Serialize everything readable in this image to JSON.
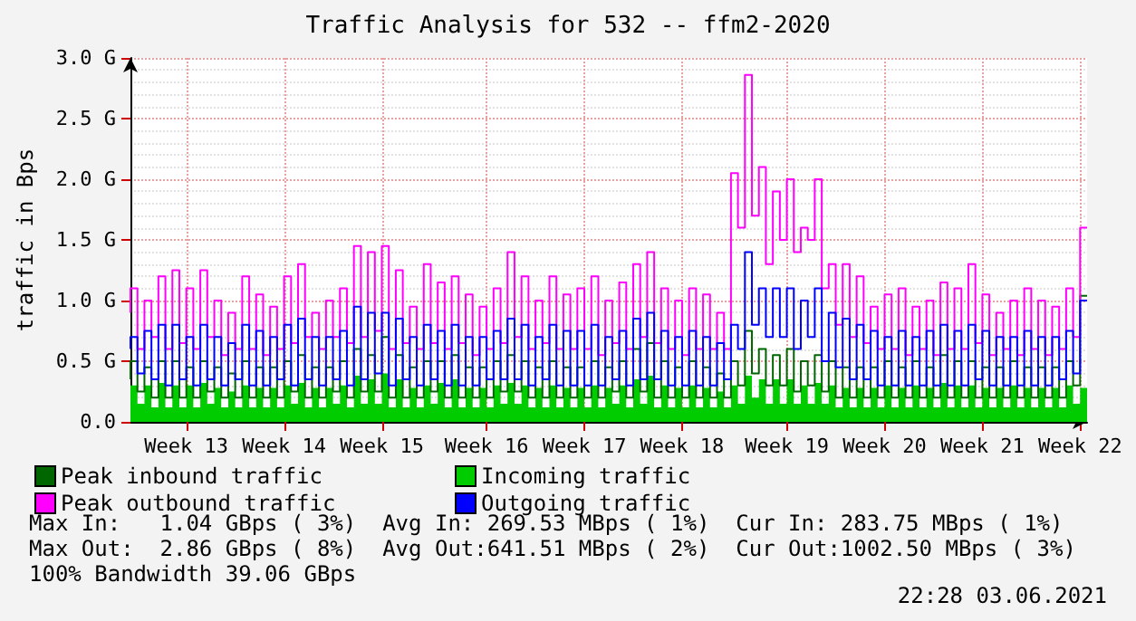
{
  "chart_data": {
    "type": "step",
    "title": "Traffic Analysis for 532 -- ffm2-2020",
    "ylabel": "traffic in Bps",
    "categories": [
      null,
      null,
      null,
      null,
      null,
      null,
      null,
      null,
      "Week 13",
      null,
      null,
      null,
      null,
      null,
      null,
      null,
      null,
      null,
      null,
      null,
      null,
      null,
      "Week 14",
      null,
      null,
      null,
      null,
      null,
      null,
      null,
      null,
      null,
      null,
      null,
      null,
      null,
      "Week 15",
      null,
      null,
      null,
      null,
      null,
      null,
      null,
      null,
      null,
      null,
      null,
      null,
      null,
      null,
      "Week 16",
      null,
      null,
      null,
      null,
      null,
      null,
      null,
      null,
      null,
      null,
      null,
      null,
      null,
      "Week 17",
      null,
      null,
      null,
      null,
      null,
      null,
      null,
      null,
      null,
      null,
      null,
      null,
      null,
      "Week 18",
      null,
      null,
      null,
      null,
      null,
      null,
      null,
      null,
      null,
      null,
      null,
      null,
      null,
      null,
      "Week 19",
      null,
      null,
      null,
      null,
      null,
      null,
      null,
      null,
      null,
      null,
      null,
      null,
      null,
      "Week 20",
      null,
      null,
      null,
      null,
      null,
      null,
      null,
      null,
      null,
      null,
      null,
      null,
      null,
      "Week 21",
      null,
      null,
      null,
      null,
      null,
      null,
      null,
      null,
      null,
      null,
      null,
      null,
      null,
      "Week 22",
      null
    ],
    "ylim": [
      0,
      3
    ],
    "yticks": [
      {
        "value": 0,
        "label": "0.0"
      },
      {
        "value": 0.5,
        "label": "0.5 G"
      },
      {
        "value": 1,
        "label": "1.0 G"
      },
      {
        "value": 1.5,
        "label": "1.5 G"
      },
      {
        "value": 2,
        "label": "2.0 G"
      },
      {
        "value": 2.5,
        "label": "2.5 G"
      },
      {
        "value": 3,
        "label": "3.0 G"
      }
    ],
    "grid": true,
    "legend": "bottom left",
    "series": [
      {
        "name": "Peak inbound traffic",
        "color": "#006600",
        "values": [
          0.35,
          0.5,
          0.25,
          0.45,
          0.2,
          0.5,
          0.2,
          0.5,
          0.2,
          0.45,
          0.2,
          0.5,
          0.25,
          0.45,
          0.2,
          0.4,
          0.2,
          0.5,
          0.2,
          0.45,
          0.2,
          0.45,
          0.2,
          0.5,
          0.25,
          0.55,
          0.2,
          0.45,
          0.2,
          0.45,
          0.25,
          0.5,
          0.2,
          0.6,
          0.25,
          0.55,
          0.25,
          0.7,
          0.2,
          0.55,
          0.2,
          0.45,
          0.2,
          0.5,
          0.25,
          0.5,
          0.2,
          0.55,
          0.2,
          0.45,
          0.2,
          0.45,
          0.2,
          0.5,
          0.25,
          0.55,
          0.25,
          0.5,
          0.2,
          0.45,
          0.2,
          0.5,
          0.2,
          0.45,
          0.2,
          0.45,
          0.2,
          0.5,
          0.2,
          0.45,
          0.25,
          0.5,
          0.2,
          0.6,
          0.25,
          0.65,
          0.2,
          0.5,
          0.2,
          0.45,
          0.2,
          0.5,
          0.2,
          0.45,
          0.2,
          0.4,
          0.2,
          0.5,
          0.3,
          0.75,
          0.4,
          0.6,
          0.3,
          0.55,
          0.3,
          0.6,
          0.25,
          0.5,
          0.3,
          0.55,
          0.25,
          0.5,
          0.2,
          0.45,
          0.2,
          0.45,
          0.2,
          0.45,
          0.2,
          0.5,
          0.2,
          0.45,
          0.2,
          0.5,
          0.2,
          0.45,
          0.2,
          0.55,
          0.2,
          0.5,
          0.2,
          0.5,
          0.2,
          0.45,
          0.2,
          0.45,
          0.2,
          0.5,
          0.2,
          0.45,
          0.2,
          0.45,
          0.2,
          0.45,
          0.2,
          0.5,
          0.3,
          1.04
        ]
      },
      {
        "name": "Incoming traffic",
        "type": "area",
        "color": "#00cc00",
        "values": [
          0.25,
          0.3,
          0.15,
          0.3,
          0.12,
          0.32,
          0.12,
          0.3,
          0.12,
          0.3,
          0.12,
          0.32,
          0.15,
          0.28,
          0.12,
          0.25,
          0.12,
          0.3,
          0.12,
          0.28,
          0.12,
          0.28,
          0.12,
          0.3,
          0.15,
          0.32,
          0.12,
          0.28,
          0.12,
          0.28,
          0.15,
          0.3,
          0.12,
          0.38,
          0.15,
          0.35,
          0.15,
          0.4,
          0.12,
          0.35,
          0.12,
          0.28,
          0.12,
          0.3,
          0.15,
          0.32,
          0.12,
          0.35,
          0.12,
          0.28,
          0.12,
          0.28,
          0.12,
          0.3,
          0.15,
          0.32,
          0.15,
          0.3,
          0.12,
          0.28,
          0.12,
          0.3,
          0.12,
          0.28,
          0.12,
          0.28,
          0.12,
          0.3,
          0.12,
          0.28,
          0.15,
          0.3,
          0.12,
          0.35,
          0.15,
          0.38,
          0.12,
          0.3,
          0.12,
          0.28,
          0.12,
          0.3,
          0.12,
          0.28,
          0.12,
          0.25,
          0.12,
          0.3,
          0.15,
          0.38,
          0.2,
          0.35,
          0.15,
          0.35,
          0.15,
          0.35,
          0.15,
          0.3,
          0.15,
          0.32,
          0.15,
          0.3,
          0.12,
          0.28,
          0.12,
          0.28,
          0.12,
          0.28,
          0.12,
          0.3,
          0.12,
          0.28,
          0.12,
          0.3,
          0.12,
          0.28,
          0.12,
          0.32,
          0.12,
          0.3,
          0.12,
          0.3,
          0.12,
          0.28,
          0.12,
          0.28,
          0.12,
          0.3,
          0.12,
          0.28,
          0.12,
          0.28,
          0.12,
          0.28,
          0.12,
          0.3,
          0.15,
          0.28
        ]
      },
      {
        "name": "Peak outbound traffic",
        "color": "#ff00ff",
        "values": [
          0.9,
          1.1,
          0.6,
          1.0,
          0.7,
          1.2,
          0.6,
          1.25,
          0.65,
          1.1,
          0.6,
          1.25,
          0.7,
          1.0,
          0.55,
          0.9,
          0.6,
          1.2,
          0.6,
          1.05,
          0.55,
          0.95,
          0.6,
          1.2,
          0.65,
          1.3,
          0.7,
          0.9,
          0.6,
          1.0,
          0.7,
          1.1,
          0.65,
          1.45,
          0.7,
          1.4,
          0.75,
          1.45,
          0.6,
          1.25,
          0.65,
          0.95,
          0.6,
          1.3,
          0.65,
          1.15,
          0.6,
          1.2,
          0.65,
          1.05,
          0.55,
          0.95,
          0.6,
          1.1,
          0.65,
          1.4,
          0.7,
          1.2,
          0.6,
          1.0,
          0.65,
          1.2,
          0.6,
          1.05,
          0.6,
          1.1,
          0.6,
          1.2,
          0.55,
          1.0,
          0.65,
          1.15,
          0.6,
          1.3,
          0.7,
          1.4,
          0.65,
          1.1,
          0.6,
          1.0,
          0.55,
          1.1,
          0.6,
          1.05,
          0.6,
          0.9,
          0.6,
          2.05,
          1.6,
          2.86,
          1.7,
          2.1,
          1.3,
          1.9,
          1.5,
          2.0,
          1.4,
          1.6,
          1.5,
          2.0,
          1.1,
          1.3,
          0.8,
          1.3,
          0.7,
          1.2,
          0.65,
          0.95,
          0.6,
          1.05,
          0.6,
          1.1,
          0.55,
          0.95,
          0.6,
          1.0,
          0.55,
          1.15,
          0.6,
          1.1,
          0.6,
          1.3,
          0.65,
          1.05,
          0.55,
          0.9,
          0.6,
          1.0,
          0.55,
          1.1,
          0.6,
          1.0,
          0.55,
          0.95,
          0.6,
          1.1,
          0.7,
          1.6
        ]
      },
      {
        "name": "Outgoing traffic",
        "color": "#0000ff",
        "values": [
          0.6,
          0.7,
          0.4,
          0.75,
          0.35,
          0.8,
          0.3,
          0.8,
          0.35,
          0.7,
          0.3,
          0.8,
          0.35,
          0.7,
          0.3,
          0.65,
          0.35,
          0.8,
          0.3,
          0.75,
          0.3,
          0.7,
          0.35,
          0.8,
          0.3,
          0.85,
          0.35,
          0.7,
          0.3,
          0.7,
          0.35,
          0.75,
          0.3,
          0.95,
          0.35,
          0.9,
          0.4,
          0.9,
          0.3,
          0.85,
          0.35,
          0.7,
          0.3,
          0.8,
          0.35,
          0.75,
          0.3,
          0.8,
          0.3,
          0.7,
          0.3,
          0.7,
          0.35,
          0.75,
          0.35,
          0.85,
          0.35,
          0.8,
          0.3,
          0.7,
          0.35,
          0.8,
          0.3,
          0.75,
          0.3,
          0.75,
          0.3,
          0.8,
          0.3,
          0.7,
          0.35,
          0.75,
          0.3,
          0.85,
          0.35,
          0.9,
          0.35,
          0.75,
          0.3,
          0.7,
          0.3,
          0.75,
          0.3,
          0.7,
          0.3,
          0.65,
          0.35,
          0.8,
          0.6,
          1.4,
          0.8,
          1.1,
          0.7,
          1.1,
          0.7,
          1.1,
          0.6,
          1.0,
          0.7,
          1.1,
          0.5,
          0.9,
          0.45,
          0.85,
          0.35,
          0.8,
          0.35,
          0.75,
          0.3,
          0.7,
          0.3,
          0.75,
          0.3,
          0.7,
          0.3,
          0.75,
          0.3,
          0.8,
          0.3,
          0.75,
          0.3,
          0.8,
          0.35,
          0.75,
          0.3,
          0.7,
          0.3,
          0.7,
          0.3,
          0.75,
          0.3,
          0.7,
          0.3,
          0.7,
          0.35,
          0.75,
          0.4,
          1.0
        ]
      }
    ],
    "annotations": [
      "Max In:   1.04 GBps ( 3%)  Avg In: 269.53 MBps ( 1%)  Cur In: 283.75 MBps ( 1%)",
      "Max Out:  2.86 GBps ( 8%)  Avg Out:641.51 MBps ( 2%)  Cur Out:1002.50 MBps ( 3%)",
      "100% Bandwidth 39.06 GBps",
      "22:28 03.06.2021"
    ]
  }
}
